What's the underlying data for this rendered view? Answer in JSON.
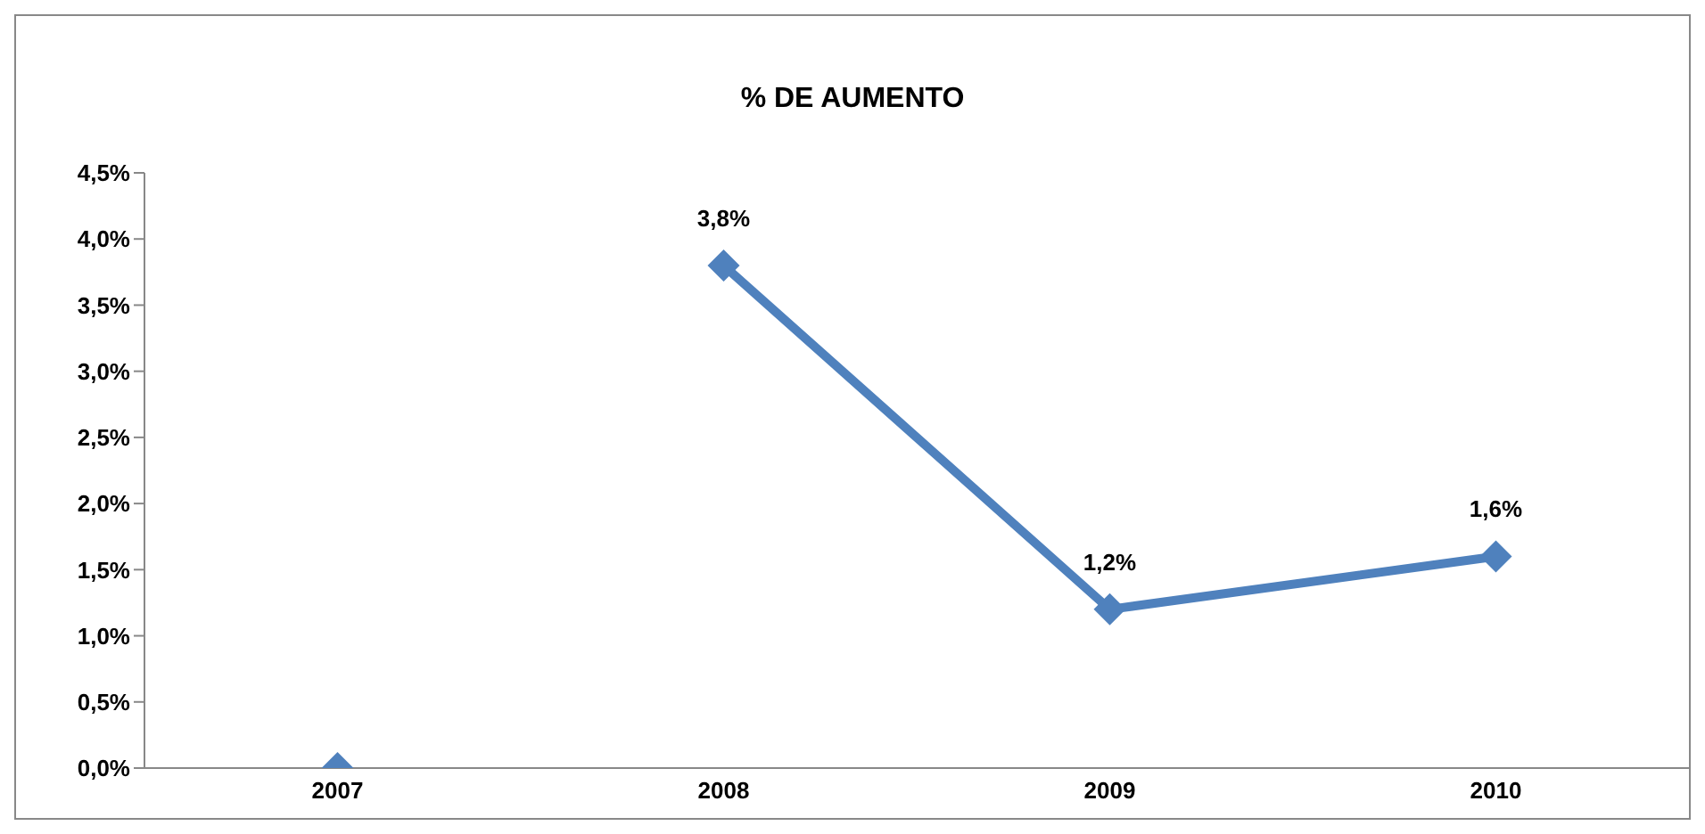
{
  "chart_data": {
    "type": "line",
    "title": "% DE AUMENTO",
    "categories": [
      "2007",
      "2008",
      "2009",
      "2010"
    ],
    "series": [
      {
        "color": "#4f81bd",
        "values": [
          null,
          3.8,
          1.2,
          1.6
        ],
        "value_labels": [
          null,
          "3,8%",
          "1,2%",
          "1,6%"
        ]
      },
      {
        "type": "scatter",
        "color": "#4f81bd",
        "values": [
          0,
          null,
          null,
          null
        ]
      }
    ],
    "ylim": [
      0,
      4.5
    ],
    "yticks": [
      {
        "value": 0,
        "label": "0,0%"
      },
      {
        "value": 0.5,
        "label": "0,5%"
      },
      {
        "value": 1,
        "label": "1,0%"
      },
      {
        "value": 1.5,
        "label": "1,5%"
      },
      {
        "value": 2,
        "label": "2,0%"
      },
      {
        "value": 2.5,
        "label": "2,5%"
      },
      {
        "value": 3,
        "label": "3,0%"
      },
      {
        "value": 3.5,
        "label": "3,5%"
      },
      {
        "value": 4,
        "label": "4,0%"
      },
      {
        "value": 4.5,
        "label": "4,5%"
      }
    ],
    "marker": "diamond",
    "grid": false
  }
}
